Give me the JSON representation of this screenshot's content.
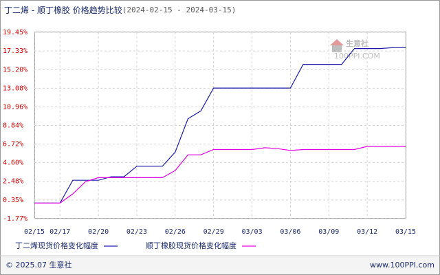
{
  "chart_data": {
    "type": "line",
    "title": "丁二烯 - 顺丁橡胶 价格趋势比较",
    "subtitle": "(2024-02-15 - 2024-03-15)",
    "categories": [
      "02/15",
      null,
      "02/17",
      null,
      null,
      "02/20",
      null,
      null,
      "02/23",
      null,
      null,
      "02/26",
      null,
      null,
      "02/29",
      null,
      null,
      "03/03",
      null,
      null,
      "03/06",
      null,
      null,
      "03/09",
      null,
      null,
      "03/12",
      null,
      null,
      "03/15"
    ],
    "series": [
      {
        "name": "丁二烯现货价格变化幅度",
        "color": "#1a1aa6",
        "values": [
          0,
          0,
          0,
          2.6,
          2.6,
          2.6,
          3.0,
          3.0,
          4.2,
          4.2,
          4.2,
          5.8,
          9.6,
          10.5,
          13.1,
          13.1,
          13.1,
          13.1,
          13.1,
          13.1,
          13.1,
          15.8,
          15.8,
          15.8,
          15.8,
          17.6,
          17.6,
          17.6,
          17.7,
          17.7
        ]
      },
      {
        "name": "顺丁橡胶现货价格变化幅度",
        "color": "#e000e0",
        "values": [
          0,
          0,
          0,
          1.05,
          2.45,
          2.9,
          2.9,
          2.9,
          2.9,
          2.9,
          2.9,
          3.7,
          5.5,
          5.5,
          6.1,
          6.1,
          6.1,
          6.1,
          6.3,
          6.2,
          6.0,
          6.1,
          6.1,
          6.1,
          6.1,
          6.1,
          6.45,
          6.45,
          6.45,
          6.45
        ]
      }
    ],
    "ylim": [
      -1.77,
      19.45
    ],
    "yticks": [
      {
        "value": -1.77,
        "label": "-1.77%"
      },
      {
        "value": 0.35,
        "label": "0.35%"
      },
      {
        "value": 2.48,
        "label": "2.48%"
      },
      {
        "value": 4.6,
        "label": "4.60%"
      },
      {
        "value": 6.72,
        "label": "6.72%"
      },
      {
        "value": 8.84,
        "label": "8.84%"
      },
      {
        "value": 10.96,
        "label": "10.96%"
      },
      {
        "value": 13.08,
        "label": "13.08%"
      },
      {
        "value": 15.2,
        "label": "15.20%"
      },
      {
        "value": 17.33,
        "label": "17.33%"
      },
      {
        "value": 19.45,
        "label": "19.45%"
      }
    ],
    "grid": true,
    "watermark": {
      "name": "生意社",
      "site": "100PPI.COM"
    },
    "footer": {
      "left": "© 2025.07 生意社",
      "right": "www.100PPI.com"
    }
  }
}
